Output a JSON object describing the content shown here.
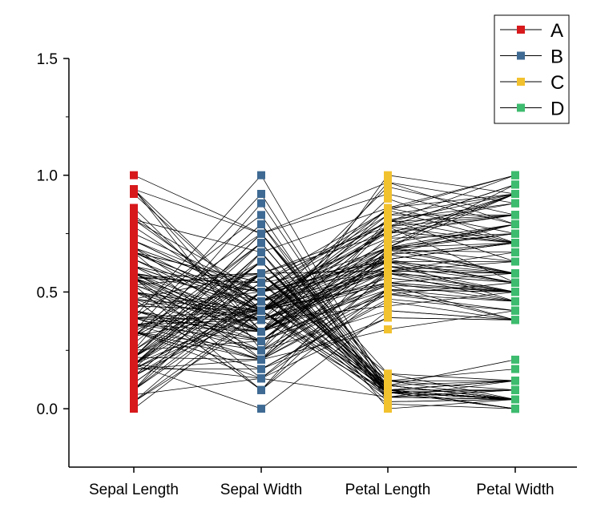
{
  "chart_data": {
    "type": "parallel-coordinates",
    "title": "",
    "xlabel": "",
    "ylabel": "",
    "ylim": [
      -0.25,
      1.5
    ],
    "yticks": [
      "0.0",
      "0.5",
      "1.0",
      "1.5"
    ],
    "ytick_values": [
      0,
      0.5,
      1,
      1.5
    ],
    "categories": [
      "Sepal Length",
      "Sepal Width",
      "Petal Length",
      "Petal Width"
    ],
    "legend": {
      "placement": "top-right",
      "entries": [
        {
          "name": "A",
          "color": "#d7191c"
        },
        {
          "name": "B",
          "color": "#3e6a93"
        },
        {
          "name": "C",
          "color": "#f2c12e"
        },
        {
          "name": "D",
          "color": "#3dbb6e"
        }
      ]
    },
    "line_color": "#000000",
    "records": [
      [
        0.22,
        0.63,
        0.07,
        0.04
      ],
      [
        0.17,
        0.42,
        0.07,
        0.04
      ],
      [
        0.11,
        0.5,
        0.05,
        0.04
      ],
      [
        0.08,
        0.46,
        0.08,
        0.04
      ],
      [
        0.19,
        0.67,
        0.07,
        0.04
      ],
      [
        0.31,
        0.79,
        0.12,
        0.12
      ],
      [
        0.08,
        0.58,
        0.07,
        0.08
      ],
      [
        0.19,
        0.58,
        0.08,
        0.04
      ],
      [
        0.03,
        0.38,
        0.07,
        0.04
      ],
      [
        0.17,
        0.46,
        0.08,
        0.0
      ],
      [
        0.31,
        0.71,
        0.08,
        0.04
      ],
      [
        0.14,
        0.58,
        0.1,
        0.04
      ],
      [
        0.14,
        0.42,
        0.07,
        0.0
      ],
      [
        0.0,
        0.42,
        0.02,
        0.0
      ],
      [
        0.42,
        0.83,
        0.03,
        0.04
      ],
      [
        0.39,
        1.0,
        0.08,
        0.12
      ],
      [
        0.31,
        0.79,
        0.05,
        0.12
      ],
      [
        0.22,
        0.63,
        0.07,
        0.08
      ],
      [
        0.39,
        0.75,
        0.12,
        0.08
      ],
      [
        0.22,
        0.75,
        0.08,
        0.08
      ],
      [
        0.31,
        0.58,
        0.12,
        0.04
      ],
      [
        0.22,
        0.71,
        0.08,
        0.12
      ],
      [
        0.08,
        0.67,
        0.0,
        0.04
      ],
      [
        0.22,
        0.54,
        0.12,
        0.17
      ],
      [
        0.14,
        0.58,
        0.15,
        0.04
      ],
      [
        0.19,
        0.42,
        0.1,
        0.04
      ],
      [
        0.19,
        0.58,
        0.1,
        0.12
      ],
      [
        0.25,
        0.63,
        0.08,
        0.04
      ],
      [
        0.25,
        0.58,
        0.07,
        0.04
      ],
      [
        0.11,
        0.5,
        0.1,
        0.04
      ],
      [
        0.14,
        0.46,
        0.1,
        0.04
      ],
      [
        0.31,
        0.58,
        0.08,
        0.12
      ],
      [
        0.25,
        0.88,
        0.08,
        0.0
      ],
      [
        0.33,
        0.92,
        0.07,
        0.04
      ],
      [
        0.17,
        0.46,
        0.08,
        0.04
      ],
      [
        0.19,
        0.5,
        0.03,
        0.04
      ],
      [
        0.33,
        0.63,
        0.05,
        0.04
      ],
      [
        0.17,
        0.67,
        0.07,
        0.0
      ],
      [
        0.03,
        0.42,
        0.05,
        0.04
      ],
      [
        0.22,
        0.58,
        0.08,
        0.04
      ],
      [
        0.19,
        0.63,
        0.05,
        0.08
      ],
      [
        0.06,
        0.13,
        0.05,
        0.08
      ],
      [
        0.03,
        0.5,
        0.05,
        0.04
      ],
      [
        0.19,
        0.63,
        0.1,
        0.21
      ],
      [
        0.22,
        0.75,
        0.15,
        0.12
      ],
      [
        0.14,
        0.42,
        0.07,
        0.08
      ],
      [
        0.22,
        0.75,
        0.1,
        0.04
      ],
      [
        0.08,
        0.5,
        0.07,
        0.04
      ],
      [
        0.28,
        0.71,
        0.08,
        0.04
      ],
      [
        0.19,
        0.54,
        0.07,
        0.04
      ],
      [
        0.75,
        0.5,
        0.63,
        0.54
      ],
      [
        0.58,
        0.5,
        0.59,
        0.58
      ],
      [
        0.72,
        0.46,
        0.66,
        0.58
      ],
      [
        0.33,
        0.13,
        0.51,
        0.5
      ],
      [
        0.61,
        0.33,
        0.61,
        0.58
      ],
      [
        0.39,
        0.33,
        0.59,
        0.5
      ],
      [
        0.56,
        0.54,
        0.63,
        0.63
      ],
      [
        0.17,
        0.17,
        0.39,
        0.38
      ],
      [
        0.64,
        0.38,
        0.61,
        0.5
      ],
      [
        0.25,
        0.29,
        0.49,
        0.54
      ],
      [
        0.19,
        0.0,
        0.42,
        0.38
      ],
      [
        0.44,
        0.42,
        0.54,
        0.58
      ],
      [
        0.47,
        0.08,
        0.51,
        0.38
      ],
      [
        0.5,
        0.38,
        0.63,
        0.54
      ],
      [
        0.36,
        0.38,
        0.44,
        0.5
      ],
      [
        0.67,
        0.46,
        0.58,
        0.54
      ],
      [
        0.36,
        0.42,
        0.59,
        0.58
      ],
      [
        0.42,
        0.29,
        0.53,
        0.38
      ],
      [
        0.53,
        0.08,
        0.59,
        0.58
      ],
      [
        0.36,
        0.21,
        0.49,
        0.42
      ],
      [
        0.44,
        0.5,
        0.64,
        0.71
      ],
      [
        0.5,
        0.33,
        0.51,
        0.5
      ],
      [
        0.56,
        0.21,
        0.66,
        0.58
      ],
      [
        0.5,
        0.33,
        0.63,
        0.46
      ],
      [
        0.58,
        0.38,
        0.56,
        0.5
      ],
      [
        0.64,
        0.42,
        0.58,
        0.54
      ],
      [
        0.69,
        0.33,
        0.64,
        0.54
      ],
      [
        0.67,
        0.42,
        0.68,
        0.67
      ],
      [
        0.47,
        0.38,
        0.59,
        0.58
      ],
      [
        0.39,
        0.25,
        0.42,
        0.38
      ],
      [
        0.33,
        0.17,
        0.47,
        0.42
      ],
      [
        0.33,
        0.17,
        0.46,
        0.38
      ],
      [
        0.42,
        0.29,
        0.49,
        0.46
      ],
      [
        0.47,
        0.29,
        0.69,
        0.63
      ],
      [
        0.31,
        0.42,
        0.59,
        0.58
      ],
      [
        0.47,
        0.58,
        0.59,
        0.63
      ],
      [
        0.67,
        0.46,
        0.63,
        0.58
      ],
      [
        0.56,
        0.13,
        0.58,
        0.5
      ],
      [
        0.36,
        0.42,
        0.53,
        0.5
      ],
      [
        0.33,
        0.21,
        0.51,
        0.5
      ],
      [
        0.33,
        0.25,
        0.58,
        0.46
      ],
      [
        0.5,
        0.42,
        0.61,
        0.54
      ],
      [
        0.42,
        0.25,
        0.51,
        0.46
      ],
      [
        0.19,
        0.13,
        0.39,
        0.38
      ],
      [
        0.36,
        0.29,
        0.54,
        0.5
      ],
      [
        0.39,
        0.42,
        0.54,
        0.46
      ],
      [
        0.39,
        0.38,
        0.54,
        0.5
      ],
      [
        0.53,
        0.38,
        0.56,
        0.5
      ],
      [
        0.22,
        0.21,
        0.34,
        0.42
      ],
      [
        0.39,
        0.33,
        0.53,
        0.5
      ],
      [
        0.56,
        0.54,
        0.85,
        1.0
      ],
      [
        0.42,
        0.29,
        0.69,
        0.75
      ],
      [
        0.78,
        0.42,
        0.83,
        0.83
      ],
      [
        0.56,
        0.38,
        0.78,
        0.71
      ],
      [
        0.61,
        0.42,
        0.81,
        0.88
      ],
      [
        0.92,
        0.42,
        0.95,
        0.83
      ],
      [
        0.17,
        0.21,
        0.59,
        0.67
      ],
      [
        0.83,
        0.38,
        0.9,
        0.71
      ],
      [
        0.67,
        0.21,
        0.81,
        0.71
      ],
      [
        0.81,
        0.67,
        0.86,
        1.0
      ],
      [
        0.61,
        0.5,
        0.69,
        0.79
      ],
      [
        0.58,
        0.29,
        0.73,
        0.75
      ],
      [
        0.69,
        0.42,
        0.76,
        0.83
      ],
      [
        0.39,
        0.21,
        0.68,
        0.79
      ],
      [
        0.42,
        0.33,
        0.69,
        0.96
      ],
      [
        0.58,
        0.5,
        0.73,
        0.92
      ],
      [
        0.61,
        0.42,
        0.76,
        0.71
      ],
      [
        0.94,
        0.75,
        0.97,
        0.88
      ],
      [
        0.94,
        0.25,
        1.0,
        0.92
      ],
      [
        0.47,
        0.08,
        0.68,
        0.58
      ],
      [
        0.72,
        0.5,
        0.8,
        0.92
      ],
      [
        0.36,
        0.33,
        0.66,
        0.79
      ],
      [
        0.94,
        0.33,
        0.97,
        0.79
      ],
      [
        0.56,
        0.29,
        0.66,
        0.71
      ],
      [
        0.67,
        0.54,
        0.8,
        0.83
      ],
      [
        0.81,
        0.5,
        0.85,
        0.71
      ],
      [
        0.53,
        0.33,
        0.64,
        0.71
      ],
      [
        0.5,
        0.42,
        0.66,
        0.71
      ],
      [
        0.58,
        0.33,
        0.78,
        0.83
      ],
      [
        0.81,
        0.42,
        0.81,
        0.63
      ],
      [
        0.86,
        0.33,
        0.86,
        0.75
      ],
      [
        1.0,
        0.75,
        0.92,
        0.79
      ],
      [
        0.58,
        0.33,
        0.78,
        0.88
      ],
      [
        0.56,
        0.33,
        0.69,
        0.58
      ],
      [
        0.5,
        0.25,
        0.78,
        0.54
      ],
      [
        0.94,
        0.42,
        0.86,
        0.92
      ],
      [
        0.56,
        0.58,
        0.78,
        0.96
      ],
      [
        0.58,
        0.46,
        0.76,
        0.71
      ],
      [
        0.47,
        0.42,
        0.64,
        0.71
      ],
      [
        0.72,
        0.46,
        0.75,
        0.83
      ],
      [
        0.67,
        0.46,
        0.78,
        0.96
      ],
      [
        0.72,
        0.46,
        0.69,
        0.92
      ],
      [
        0.42,
        0.29,
        0.69,
        0.75
      ],
      [
        0.69,
        0.5,
        0.83,
        0.92
      ],
      [
        0.67,
        0.54,
        0.8,
        1.0
      ],
      [
        0.67,
        0.42,
        0.71,
        0.92
      ],
      [
        0.56,
        0.21,
        0.68,
        0.75
      ],
      [
        0.61,
        0.42,
        0.71,
        0.79
      ],
      [
        0.53,
        0.58,
        0.75,
        0.92
      ],
      [
        0.44,
        0.42,
        0.69,
        0.71
      ]
    ]
  }
}
